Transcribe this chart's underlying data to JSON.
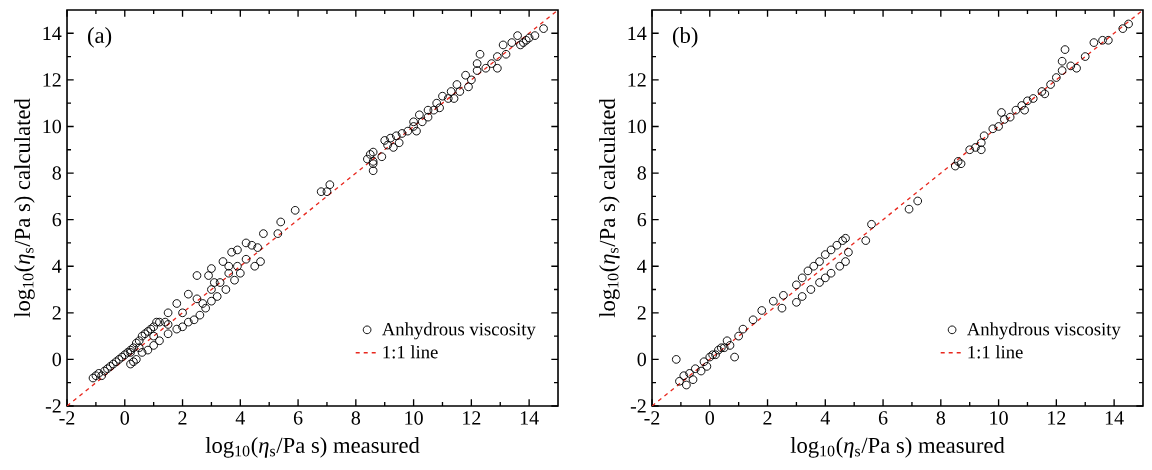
{
  "chart_data": [
    {
      "type": "scatter",
      "xlabel": "log$_{10}$(*η*$_{s}$/Pa s) measured",
      "ylabel": "log$_{10}$(*η*$_{s}$/Pa s) calculated",
      "annotations": [
        "(a)"
      ],
      "xlim": [
        -2,
        15
      ],
      "ylim": [
        -2,
        15
      ],
      "xticks": [
        -2,
        0,
        2,
        4,
        6,
        8,
        10,
        12,
        14
      ],
      "yticks": [
        -2,
        0,
        2,
        4,
        6,
        8,
        10,
        12,
        14
      ],
      "grid": false,
      "legend": "bottom right",
      "series": [
        {
          "name": "Anhydrous viscosity",
          "marker": "circle",
          "color": "#000000",
          "x": [
            -1.1,
            -1.0,
            -0.9,
            -0.8,
            -0.7,
            -0.6,
            -0.5,
            -0.4,
            -0.3,
            -0.2,
            -0.1,
            0,
            0.1,
            0.2,
            0.3,
            0.4,
            0.5,
            0.6,
            0.7,
            0.8,
            0.9,
            1.0,
            1.1,
            1.2,
            1.4,
            1.5,
            1.8,
            2.2,
            2.5,
            2.9,
            3.0,
            3.4,
            3.7,
            3.9,
            4.2,
            4.4,
            4.6,
            4.8,
            4.7,
            4.5,
            4.0,
            3.8,
            3.5,
            3.2,
            3.0,
            2.8,
            2.6,
            2.4,
            2.2,
            2.0,
            1.8,
            1.5,
            1.2,
            1.0,
            0.8,
            0.6,
            0.4,
            0.3,
            0.2,
            0.2,
            0.5,
            1.0,
            1.5,
            2.0,
            2.5,
            3.0,
            3.3,
            3.6,
            3.9,
            4.2,
            3.1,
            2.7,
            3.6,
            5.3,
            5.4,
            5.9,
            6.8,
            7.0,
            7.1,
            8.4,
            8.5,
            8.6,
            8.6,
            8.6,
            8.6,
            8.9,
            9.0,
            9.1,
            9.2,
            9.4,
            9.3,
            9.6,
            9.8,
            10.0,
            10.0,
            10.2,
            10.3,
            10.5,
            10.5,
            10.8,
            10.7,
            11.0,
            11.2,
            11.3,
            11.5,
            11.6,
            11.8,
            12.0,
            11.9,
            12.2,
            12.3,
            12.2,
            12.5,
            12.7,
            12.9,
            12.9,
            13.1,
            13.2,
            13.4,
            13.6,
            13.7,
            13.8,
            13.9,
            14.0,
            14.2,
            14.5,
            9.5,
            10.1,
            10.9,
            11.4
          ],
          "values": [
            -0.8,
            -0.7,
            -0.6,
            -0.7,
            -0.5,
            -0.4,
            -0.3,
            -0.2,
            -0.1,
            0.0,
            0.1,
            0.2,
            0.3,
            0.4,
            0.5,
            0.7,
            0.8,
            1.0,
            1.1,
            1.2,
            1.3,
            1.4,
            1.6,
            1.6,
            1.6,
            2.0,
            2.4,
            2.8,
            3.6,
            3.6,
            3.9,
            4.2,
            4.6,
            4.7,
            5.0,
            4.9,
            4.8,
            5.4,
            4.2,
            4.0,
            3.7,
            3.4,
            3.0,
            2.7,
            2.5,
            2.2,
            1.9,
            1.7,
            1.6,
            1.4,
            1.3,
            1.1,
            0.8,
            0.6,
            0.4,
            0.3,
            0.0,
            -0.1,
            -0.2,
            0.3,
            0.5,
            1.0,
            1.5,
            2.0,
            2.6,
            3.0,
            3.3,
            3.7,
            4.0,
            4.3,
            3.3,
            2.4,
            4.0,
            5.4,
            5.9,
            6.4,
            7.2,
            7.2,
            7.5,
            8.6,
            8.8,
            8.9,
            8.4,
            8.1,
            8.5,
            8.7,
            9.4,
            9.2,
            9.5,
            9.6,
            9.1,
            9.7,
            9.8,
            10.0,
            10.2,
            10.5,
            10.2,
            10.7,
            10.4,
            11.0,
            10.7,
            11.3,
            11.2,
            11.5,
            11.8,
            11.5,
            12.2,
            12.0,
            11.7,
            12.4,
            13.1,
            12.7,
            12.5,
            12.7,
            12.5,
            13.0,
            13.5,
            13.1,
            13.6,
            13.9,
            13.5,
            13.6,
            13.7,
            13.8,
            13.9,
            14.2,
            9.3,
            9.8,
            10.8,
            11.2
          ]
        },
        {
          "name": "1:1 line",
          "type": "line",
          "line_style": "dashed",
          "color": "#e8281e",
          "x": [
            -2,
            15
          ],
          "values": [
            -2,
            15
          ]
        }
      ]
    },
    {
      "type": "scatter",
      "xlabel": "log$_{10}$(*η*$_{s}$/Pa s) measured",
      "ylabel": "log$_{10}$(*η*$_{s}$/Pa s) calculated",
      "annotations": [
        "(b)"
      ],
      "xlim": [
        -2,
        15
      ],
      "ylim": [
        -2,
        15
      ],
      "xticks": [
        -2,
        0,
        2,
        4,
        6,
        8,
        10,
        12,
        14
      ],
      "yticks": [
        -2,
        0,
        2,
        4,
        6,
        8,
        10,
        12,
        14
      ],
      "grid": false,
      "legend": "bottom right",
      "series": [
        {
          "name": "Anhydrous viscosity",
          "marker": "circle",
          "color": "#000000",
          "x": [
            -1.16,
            -1.05,
            -0.81,
            -0.58,
            -0.9,
            -0.3,
            -0.1,
            0.1,
            0.4,
            0.6,
            0.86,
            1.0,
            1.15,
            1.5,
            1.8,
            2.2,
            2.55,
            2.5,
            3.0,
            3.0,
            3.2,
            3.4,
            3.6,
            3.8,
            4.0,
            4.2,
            4.4,
            4.6,
            4.7,
            3.2,
            3.5,
            3.8,
            4.0,
            4.2,
            4.5,
            4.8,
            4.7,
            5.4,
            -0.7,
            -0.5,
            -0.2,
            0.0,
            0.2,
            0.3,
            0.5,
            0.7,
            5.6,
            6.9,
            7.2,
            8.5,
            8.6,
            8.7,
            9.0,
            9.2,
            9.4,
            9.5,
            9.8,
            10.0,
            10.2,
            10.4,
            10.6,
            10.8,
            11.0,
            11.2,
            11.5,
            11.8,
            12.0,
            12.2,
            12.3,
            12.2,
            12.5,
            12.7,
            13.0,
            13.3,
            13.6,
            13.8,
            14.3,
            14.5,
            9.4,
            10.9,
            11.6,
            10.1
          ],
          "values": [
            0.0,
            -0.94,
            -1.1,
            -0.87,
            -0.7,
            -0.5,
            -0.3,
            0.2,
            0.5,
            0.8,
            0.1,
            1.0,
            1.3,
            1.7,
            2.1,
            2.5,
            2.75,
            2.2,
            2.45,
            3.2,
            3.5,
            3.8,
            4.0,
            4.2,
            4.5,
            4.7,
            4.9,
            5.1,
            5.2,
            2.7,
            3.0,
            3.3,
            3.5,
            3.7,
            4.0,
            4.6,
            4.2,
            5.1,
            -0.6,
            -0.4,
            -0.1,
            0.1,
            0.2,
            0.4,
            0.5,
            0.6,
            5.8,
            6.45,
            6.8,
            8.3,
            8.5,
            8.4,
            9.0,
            9.1,
            9.3,
            9.6,
            9.9,
            10.0,
            10.3,
            10.4,
            10.7,
            10.9,
            11.1,
            11.2,
            11.5,
            11.8,
            12.1,
            12.4,
            13.3,
            12.8,
            12.6,
            12.5,
            13.0,
            13.6,
            13.7,
            13.7,
            14.2,
            14.4,
            9.0,
            10.7,
            11.4,
            10.6
          ]
        },
        {
          "name": "1:1 line",
          "type": "line",
          "line_style": "dashed",
          "color": "#e8281e",
          "x": [
            -2,
            15
          ],
          "values": [
            -2,
            15
          ]
        }
      ]
    }
  ]
}
